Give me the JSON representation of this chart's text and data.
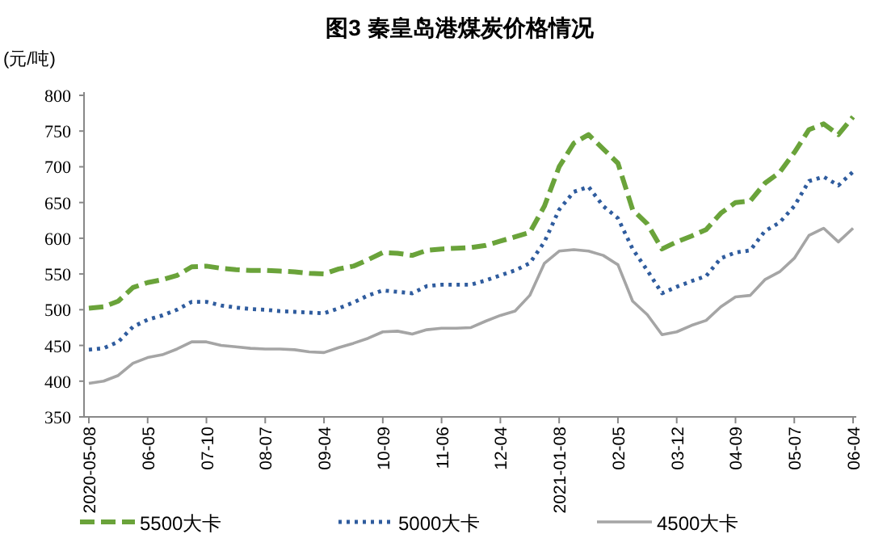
{
  "chart_data": {
    "type": "line",
    "title": "图3  秦皇岛港煤炭价格情况",
    "ylabel": "(元/吨)",
    "categories": [
      "2020-05-08",
      null,
      null,
      null,
      "06-05",
      null,
      null,
      null,
      "07-10",
      null,
      null,
      null,
      "08-07",
      null,
      null,
      null,
      "09-04",
      null,
      null,
      null,
      "10-09",
      null,
      null,
      null,
      "11-06",
      null,
      null,
      null,
      "12-04",
      null,
      null,
      null,
      "2021-01-08",
      null,
      null,
      null,
      "02-05",
      null,
      null,
      null,
      "03-12",
      null,
      null,
      null,
      "04-09",
      null,
      null,
      null,
      "05-07",
      null,
      null,
      null,
      "06-04"
    ],
    "series": [
      {
        "name": "5500大卡",
        "color": "#6aa33a",
        "line_style": "dashed",
        "values": [
          502,
          504,
          512,
          531,
          538,
          542,
          548,
          560,
          561,
          558,
          556,
          555,
          555,
          554,
          553,
          551,
          550,
          557,
          561,
          570,
          580,
          579,
          576,
          583,
          585,
          586,
          587,
          590,
          596,
          602,
          608,
          645,
          700,
          733,
          745,
          725,
          705,
          640,
          620,
          585,
          595,
          603,
          612,
          635,
          650,
          652,
          677,
          692,
          720,
          752,
          760,
          745,
          770
        ]
      },
      {
        "name": "5000大卡",
        "color": "#2f5c9e",
        "line_style": "dotted",
        "values": [
          444,
          446,
          455,
          476,
          486,
          492,
          500,
          511,
          511,
          506,
          503,
          501,
          500,
          498,
          497,
          496,
          495,
          502,
          510,
          520,
          527,
          525,
          523,
          533,
          535,
          535,
          535,
          541,
          548,
          555,
          565,
          595,
          640,
          665,
          672,
          645,
          628,
          585,
          555,
          523,
          532,
          540,
          547,
          572,
          580,
          583,
          610,
          622,
          645,
          680,
          686,
          674,
          693
        ]
      },
      {
        "name": "4500大卡",
        "color": "#a5a5a5",
        "line_style": "solid",
        "values": [
          397,
          400,
          408,
          425,
          433,
          437,
          445,
          455,
          455,
          450,
          448,
          446,
          445,
          445,
          444,
          441,
          440,
          447,
          453,
          460,
          469,
          470,
          466,
          472,
          474,
          474,
          475,
          484,
          492,
          498,
          520,
          565,
          582,
          584,
          582,
          576,
          563,
          512,
          493,
          465,
          469,
          478,
          485,
          504,
          518,
          520,
          542,
          553,
          572,
          604,
          614,
          595,
          614
        ]
      }
    ],
    "ylim": [
      350,
      800
    ],
    "yticks": [
      350,
      400,
      450,
      500,
      550,
      600,
      650,
      700,
      750,
      800
    ],
    "legend": "bottom"
  }
}
